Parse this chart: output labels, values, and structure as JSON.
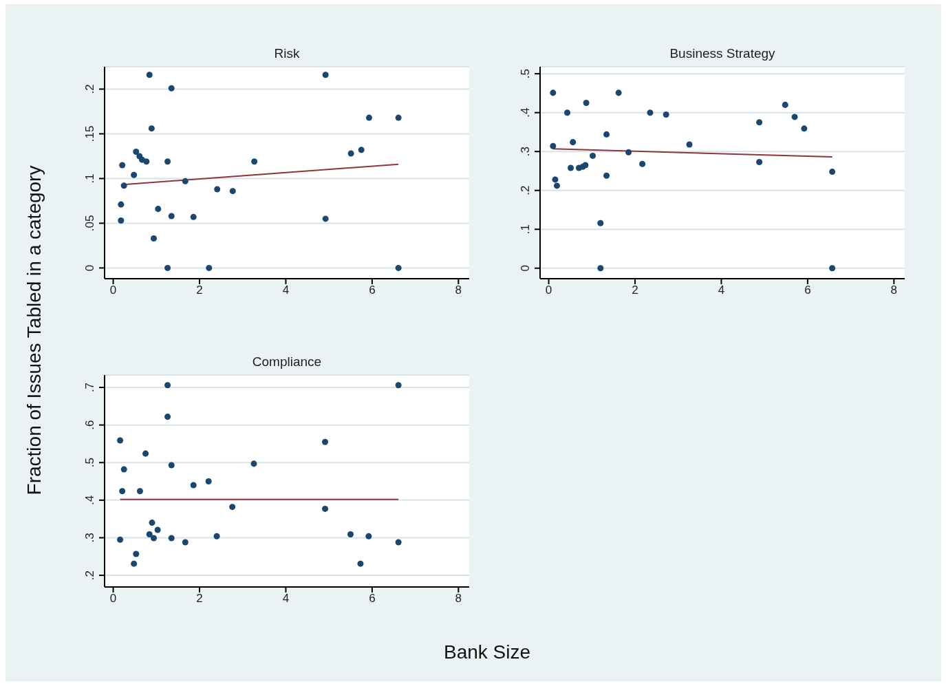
{
  "chart_data": [
    {
      "type": "scatter",
      "title": "Risk",
      "ylabel": "Fraction of Issues Tabled in a category",
      "xlim": [
        -0.2,
        8.25
      ],
      "xticks": [
        0,
        2,
        4,
        6,
        8
      ],
      "ylim": [
        -0.012,
        0.225
      ],
      "yticks": [
        0,
        {
          "value": 0.05,
          "label": ".05"
        },
        {
          "value": 0.1,
          "label": ".1"
        },
        {
          "value": 0.15,
          "label": ".15"
        },
        {
          "value": 0.2,
          "label": ".2"
        }
      ],
      "grid": "y",
      "series": [
        {
          "marker": "circle",
          "color": "#1a476f",
          "x": [
            0.18,
            0.18,
            0.21,
            0.25,
            0.48,
            0.53,
            0.61,
            0.67,
            0.77,
            0.84,
            0.89,
            0.94,
            1.04,
            1.26,
            1.26,
            1.35,
            1.35,
            1.67,
            1.86,
            2.22,
            2.41,
            2.77,
            3.27,
            4.92,
            4.92,
            5.51,
            5.75,
            5.93,
            6.61,
            6.61
          ],
          "values": [
            0.071,
            0.053,
            0.115,
            0.092,
            0.104,
            0.13,
            0.125,
            0.121,
            0.119,
            0.216,
            0.156,
            0.033,
            0.066,
            0.119,
            0,
            0.201,
            0.058,
            0.097,
            0.057,
            0,
            0.088,
            0.086,
            0.119,
            0.216,
            0.055,
            0.128,
            0.132,
            0.168,
            0.168,
            0
          ]
        },
        {
          "type": "line",
          "marker": "none",
          "color": "#90353b",
          "x": [
            0.18,
            6.61
          ],
          "values": [
            0.093,
            0.116
          ]
        }
      ]
    },
    {
      "type": "scatter",
      "title": "Business Strategy",
      "xlim": [
        -0.2,
        8.25
      ],
      "xticks": [
        0,
        2,
        4,
        6,
        8
      ],
      "ylim": [
        -0.027,
        0.518
      ],
      "yticks": [
        0,
        {
          "value": 0.1,
          "label": ".1"
        },
        {
          "value": 0.2,
          "label": ".2"
        },
        {
          "value": 0.3,
          "label": ".3"
        },
        {
          "value": 0.4,
          "label": ".4"
        },
        {
          "value": 0.5,
          "label": ".5"
        }
      ],
      "grid": "y",
      "series": [
        {
          "marker": "circle",
          "color": "#1a476f",
          "x": [
            0.1,
            0.1,
            0.15,
            0.19,
            0.43,
            0.56,
            0.51,
            0.7,
            0.79,
            0.85,
            0.87,
            1.02,
            1.2,
            1.2,
            1.34,
            1.34,
            1.62,
            1.85,
            2.17,
            2.35,
            2.72,
            3.26,
            4.88,
            4.88,
            5.48,
            5.7,
            5.92,
            6.57,
            6.57
          ],
          "values": [
            0.451,
            0.314,
            0.228,
            0.212,
            0.4,
            0.324,
            0.258,
            0.258,
            0.261,
            0.265,
            0.425,
            0.289,
            0.116,
            0,
            0.344,
            0.238,
            0.451,
            0.298,
            0.268,
            0.4,
            0.395,
            0.318,
            0.375,
            0.273,
            0.42,
            0.389,
            0.359,
            0.248,
            0
          ]
        },
        {
          "type": "line",
          "marker": "none",
          "color": "#90353b",
          "x": [
            0.1,
            6.57
          ],
          "values": [
            0.307,
            0.286
          ]
        }
      ]
    },
    {
      "type": "scatter",
      "title": "Compliance",
      "xlabel": "Bank Size",
      "xlim": [
        -0.2,
        8.25
      ],
      "xticks": [
        0,
        2,
        4,
        6,
        8
      ],
      "ylim": [
        0.169,
        0.733
      ],
      "yticks": [
        {
          "value": 0.2,
          "label": ".2"
        },
        {
          "value": 0.3,
          "label": ".3"
        },
        {
          "value": 0.4,
          "label": ".4"
        },
        {
          "value": 0.5,
          "label": ".5"
        },
        {
          "value": 0.6,
          "label": ".6"
        },
        {
          "value": 0.7,
          "label": ".7"
        }
      ],
      "grid": "y",
      "series": [
        {
          "marker": "circle",
          "color": "#1a476f",
          "x": [
            0.16,
            0.25,
            0.21,
            0.62,
            0.75,
            0.16,
            0.53,
            0.48,
            0.9,
            1.03,
            0.84,
            0.94,
            1.26,
            1.26,
            1.35,
            1.35,
            1.67,
            1.86,
            2.21,
            2.4,
            2.76,
            3.26,
            4.91,
            4.91,
            5.5,
            5.73,
            5.92,
            6.61,
            6.61
          ],
          "values": [
            0.559,
            0.482,
            0.424,
            0.424,
            0.524,
            0.295,
            0.257,
            0.231,
            0.34,
            0.321,
            0.309,
            0.299,
            0.706,
            0.622,
            0.493,
            0.299,
            0.288,
            0.44,
            0.45,
            0.304,
            0.382,
            0.497,
            0.555,
            0.377,
            0.309,
            0.231,
            0.304,
            0.706,
            0.288
          ]
        },
        {
          "type": "line",
          "marker": "none",
          "color": "#90353b",
          "x": [
            0.16,
            6.61
          ],
          "values": [
            0.402,
            0.402
          ]
        }
      ]
    }
  ]
}
